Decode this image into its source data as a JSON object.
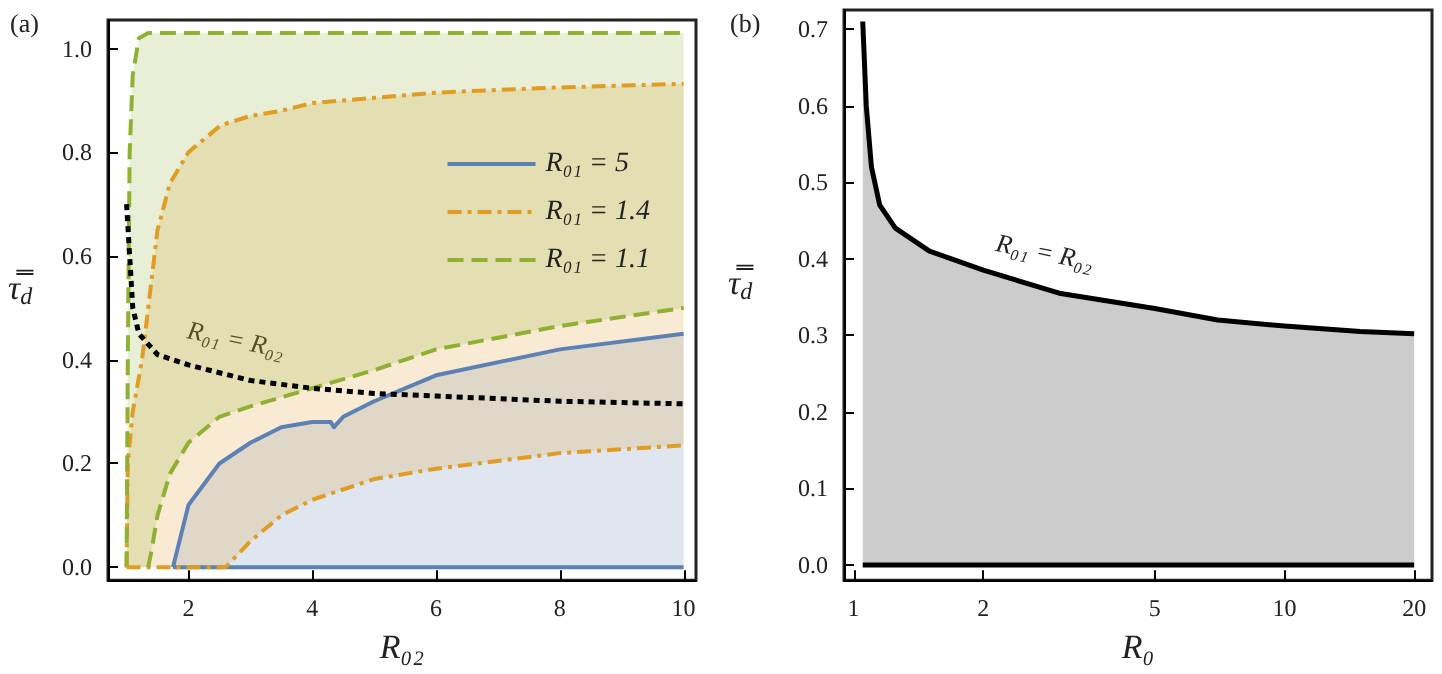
{
  "chart_data": [
    {
      "type": "line",
      "title": "(a)",
      "xlabel": "R₀₂",
      "ylabel": "τ̿$_{d}$",
      "xlim": [
        0.7,
        10.2
      ],
      "ylim": [
        -0.025,
        1.055
      ],
      "xticks": [
        2,
        4,
        6,
        8,
        10
      ],
      "yticks": [
        {
          "value": 0,
          "label": "0.0"
        },
        {
          "value": 0.2,
          "label": "0.2"
        },
        {
          "value": 0.4,
          "label": "0.4"
        },
        {
          "value": 0.6,
          "label": "0.6"
        },
        {
          "value": 0.8,
          "label": "0.8"
        },
        {
          "value": 1,
          "label": "1.0"
        }
      ],
      "legend": "top right",
      "annotations": [
        "R₀₁ = R₀₂"
      ],
      "series": [
        {
          "name": "R₀₁ = 5",
          "color": "#5e81b5",
          "line_style": "solid",
          "x": [
            1.75,
            2,
            2.5,
            3,
            3.5,
            4,
            4.3,
            4.35,
            4.5,
            5,
            6,
            8,
            10
          ],
          "values": [
            0,
            0.12,
            0.2,
            0.24,
            0.27,
            0.28,
            0.28,
            0.27,
            0.29,
            0.32,
            0.37,
            0.42,
            0.45
          ],
          "upper": [
            0,
            0.12,
            0.2,
            0.24,
            0.27,
            0.28,
            0.28,
            0.27,
            0.29,
            0.32,
            0.37,
            0.42,
            0.45
          ],
          "lower": [
            0,
            0,
            0,
            0,
            0,
            0,
            0,
            0,
            0,
            0,
            0,
            0,
            0
          ]
        },
        {
          "name": "R₀₁ = 1.4",
          "color": "#e19c24",
          "line_style": "dashdot",
          "x": [
            1.0,
            1.02,
            1.1,
            1.25,
            1.4,
            1.5,
            1.7,
            2,
            2.5,
            2.6,
            3,
            3.5,
            4,
            5,
            6,
            8,
            10
          ],
          "values": [
            0,
            0.2,
            0.3,
            0.4,
            0.55,
            0.65,
            0.74,
            0.8,
            0.85,
            0.855,
            0.87,
            0.88,
            0.895,
            0.905,
            0.915,
            0.925,
            0.932
          ],
          "upper": [
            0,
            0.2,
            0.3,
            0.4,
            0.55,
            0.65,
            0.74,
            0.8,
            0.85,
            0.855,
            0.87,
            0.88,
            0.895,
            0.905,
            0.915,
            0.925,
            0.932
          ],
          "lower": [
            0,
            0,
            0,
            0,
            0,
            0,
            0,
            0,
            0,
            0,
            0.05,
            0.1,
            0.13,
            0.17,
            0.19,
            0.22,
            0.235
          ]
        },
        {
          "name": "R₀₁ = 1.1",
          "color": "#8fb032",
          "line_style": "dashed",
          "x": [
            1.0,
            1.02,
            1.05,
            1.1,
            1.2,
            1.35,
            1.4,
            1.5,
            1.7,
            2,
            2.5,
            3,
            4,
            5,
            6,
            8,
            10
          ],
          "values": [
            0,
            0.4,
            0.8,
            0.95,
            1.02,
            1.03,
            1.03,
            1.03,
            1.03,
            1.03,
            1.03,
            1.03,
            1.03,
            1.03,
            1.03,
            1.03,
            1.03
          ],
          "upper": [
            0,
            0.4,
            0.8,
            0.95,
            1.02,
            1.03,
            1.03,
            1.03,
            1.03,
            1.03,
            1.03,
            1.03,
            1.03,
            1.03,
            1.03,
            1.03,
            1.03
          ],
          "lower": [
            0,
            0,
            0,
            0,
            0,
            0,
            0.03,
            0.1,
            0.18,
            0.24,
            0.29,
            0.31,
            0.345,
            0.38,
            0.42,
            0.465,
            0.5
          ]
        },
        {
          "color": "#5e81b5",
          "line_style": "solid",
          "x": [
            1.75,
            10
          ],
          "values": [
            0,
            0
          ]
        },
        {
          "color": "#e19c24",
          "line_style": "dashdot",
          "x": [
            1.0,
            2.6,
            3,
            3.5,
            4,
            5,
            6,
            8,
            10
          ],
          "values": [
            0,
            0,
            0.05,
            0.1,
            0.13,
            0.17,
            0.19,
            0.22,
            0.235
          ]
        },
        {
          "color": "#8fb032",
          "line_style": "dashed",
          "x": [
            1.35,
            1.4,
            1.5,
            1.7,
            2,
            2.5,
            3,
            4,
            5,
            6,
            8,
            10
          ],
          "values": [
            0,
            0.03,
            0.1,
            0.18,
            0.24,
            0.29,
            0.31,
            0.345,
            0.38,
            0.42,
            0.465,
            0.5
          ]
        },
        {
          "color": "#000000",
          "line_style": "dotted",
          "x": [
            1.0,
            1.05,
            1.1,
            1.2,
            1.5,
            2,
            3,
            4,
            5,
            6,
            8,
            10
          ],
          "values": [
            0.7,
            0.6,
            0.5,
            0.45,
            0.41,
            0.39,
            0.36,
            0.345,
            0.335,
            0.33,
            0.32,
            0.315
          ]
        }
      ]
    },
    {
      "type": "line",
      "title": "(b)",
      "xlabel": "R₀",
      "ylabel": "τ̿$_{d}$",
      "log": "x",
      "xlim": [
        0.95,
        22
      ],
      "ylim": [
        -0.02,
        0.725
      ],
      "xticks": [
        1,
        2,
        5,
        10,
        20
      ],
      "yticks": [
        {
          "value": 0,
          "label": "0.0"
        },
        {
          "value": 0.1,
          "label": "0.1"
        },
        {
          "value": 0.2,
          "label": "0.2"
        },
        {
          "value": 0.3,
          "label": "0.3"
        },
        {
          "value": 0.4,
          "label": "0.4"
        },
        {
          "value": 0.5,
          "label": "0.5"
        },
        {
          "value": 0.6,
          "label": "0.6"
        },
        {
          "value": 0.7,
          "label": "0.7"
        }
      ],
      "annotations": [
        "R₀₁ = R₀₂"
      ],
      "series": [
        {
          "color": "#000000",
          "line_style": "solid",
          "x": [
            1.05,
            20
          ],
          "values": [
            0,
            0
          ]
        },
        {
          "color": "#000000",
          "line_style": "solid",
          "x": [
            1.05,
            1.07,
            1.1,
            1.15,
            1.25,
            1.5,
            2,
            3,
            5,
            7,
            10,
            15,
            20
          ],
          "values": [
            0.71,
            0.6,
            0.52,
            0.47,
            0.44,
            0.41,
            0.385,
            0.355,
            0.335,
            0.32,
            0.312,
            0.305,
            0.302
          ],
          "upper": [
            0.71,
            0.6,
            0.52,
            0.47,
            0.44,
            0.41,
            0.385,
            0.355,
            0.335,
            0.32,
            0.312,
            0.305,
            0.302
          ],
          "lower": [
            0,
            0,
            0,
            0,
            0,
            0,
            0,
            0,
            0,
            0,
            0,
            0,
            0
          ]
        }
      ]
    }
  ]
}
